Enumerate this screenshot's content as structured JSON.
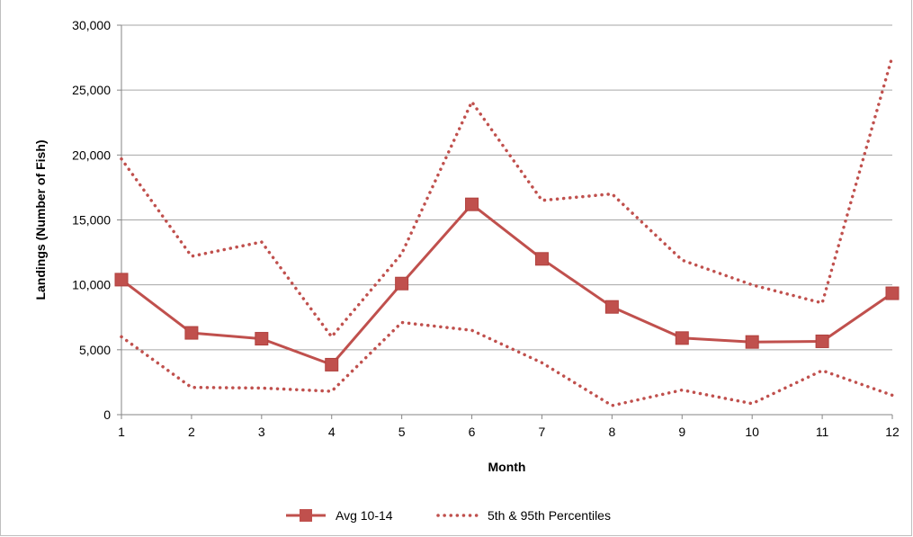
{
  "chart_data": {
    "type": "line",
    "xlabel": "Month",
    "ylabel": "Landings (Number of Fish)",
    "x": [
      1,
      2,
      3,
      4,
      5,
      6,
      7,
      8,
      9,
      10,
      11,
      12
    ],
    "ylim": [
      0,
      30000
    ],
    "yticks": [
      0,
      5000,
      10000,
      15000,
      20000,
      25000,
      30000
    ],
    "ytick_labels": [
      "0",
      "5,000",
      "10,000",
      "15,000",
      "20,000",
      "25,000",
      "30,000"
    ],
    "grid": "horizontal",
    "legend_position": "bottom",
    "series": [
      {
        "name": "Avg 10-14",
        "style": "solid-square-markers",
        "color": "#c0504d",
        "values": [
          10400,
          6300,
          5850,
          3850,
          10100,
          16200,
          12000,
          8300,
          5900,
          5600,
          5650,
          9350
        ]
      },
      {
        "name": "5th & 95th Percentiles",
        "legend_ref": "upper",
        "style": "dotted",
        "color": "#c0504d",
        "values": [
          19700,
          12200,
          13300,
          6000,
          12400,
          24100,
          16500,
          17000,
          11900,
          10000,
          8600,
          27600
        ]
      },
      {
        "legend_ref": "lower",
        "style": "dotted",
        "color": "#c0504d",
        "values": [
          6000,
          2100,
          2050,
          1800,
          7100,
          6500,
          4000,
          700,
          1900,
          850,
          3400,
          1500
        ]
      }
    ]
  }
}
